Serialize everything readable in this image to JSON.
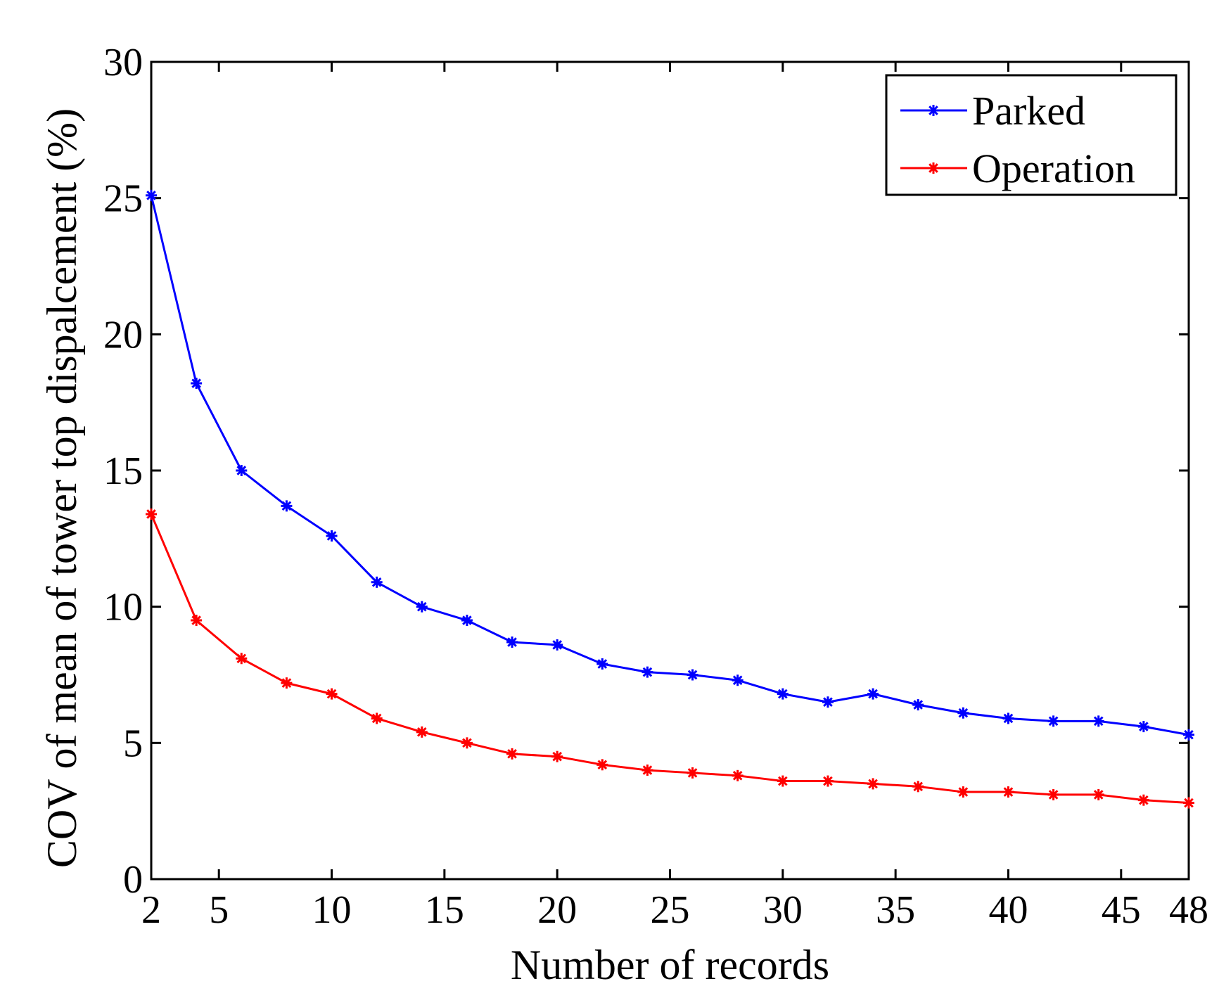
{
  "chart_data": {
    "type": "line",
    "title": "",
    "xlabel": "Number of records",
    "ylabel": "COV of mean of tower top dispalcement (%)",
    "xlim": [
      2,
      48
    ],
    "ylim": [
      0,
      30
    ],
    "xticks": [
      2,
      5,
      10,
      15,
      20,
      25,
      30,
      35,
      40,
      45,
      48
    ],
    "yticks": [
      0,
      5,
      10,
      15,
      20,
      25,
      30
    ],
    "grid": false,
    "legend_position": "top-right",
    "x": [
      2,
      4,
      6,
      8,
      10,
      12,
      14,
      16,
      18,
      20,
      22,
      24,
      26,
      28,
      30,
      32,
      34,
      36,
      38,
      40,
      42,
      44,
      46,
      48
    ],
    "series": [
      {
        "name": "Parked",
        "color": "#0000ff",
        "marker": "asterisk",
        "values": [
          25.1,
          18.2,
          15.0,
          13.7,
          12.6,
          10.9,
          10.0,
          9.5,
          8.7,
          8.6,
          7.9,
          7.6,
          7.5,
          7.3,
          6.8,
          6.5,
          6.8,
          6.4,
          6.1,
          5.9,
          5.8,
          5.8,
          5.6,
          5.3
        ]
      },
      {
        "name": "Operation",
        "color": "#ff0000",
        "marker": "asterisk",
        "values": [
          13.4,
          9.5,
          8.1,
          7.2,
          6.8,
          5.9,
          5.4,
          5.0,
          4.6,
          4.5,
          4.2,
          4.0,
          3.9,
          3.8,
          3.6,
          3.6,
          3.5,
          3.4,
          3.2,
          3.2,
          3.1,
          3.1,
          2.9,
          2.8
        ]
      }
    ]
  }
}
